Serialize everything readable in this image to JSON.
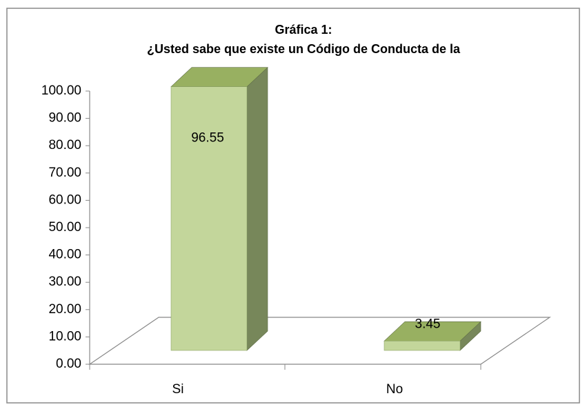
{
  "chart_data": {
    "type": "bar3d",
    "title": [
      "Gráfica 1:",
      "¿Usted sabe que existe un Código de Conducta de la"
    ],
    "categories": [
      "Si",
      "No"
    ],
    "values": [
      96.55,
      3.45
    ],
    "color": "#c3d69b",
    "ylim": [
      0,
      100
    ],
    "yticks": [
      {
        "value": 0,
        "label": "0.00"
      },
      {
        "value": 10,
        "label": "10.00"
      },
      {
        "value": 20,
        "label": "20.00"
      },
      {
        "value": 30,
        "label": "30.00"
      },
      {
        "value": 40,
        "label": "40.00"
      },
      {
        "value": 50,
        "label": "50.00"
      },
      {
        "value": 60,
        "label": "60.00"
      },
      {
        "value": 70,
        "label": "70.00"
      },
      {
        "value": 80,
        "label": "80.00"
      },
      {
        "value": 90,
        "label": "90.00"
      },
      {
        "value": 100,
        "label": "100.00"
      }
    ],
    "grid": false
  }
}
